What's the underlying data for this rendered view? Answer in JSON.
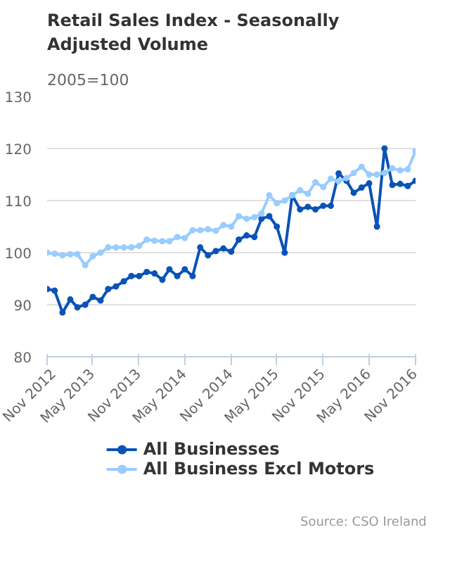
{
  "chart_data": {
    "type": "line",
    "title": "Retail Sales Index - Seasonally Adjusted Volume",
    "subtitle": "2005=100",
    "x": [
      "2012-11",
      "2012-12",
      "2013-01",
      "2013-02",
      "2013-03",
      "2013-04",
      "2013-05",
      "2013-06",
      "2013-07",
      "2013-08",
      "2013-09",
      "2013-10",
      "2013-11",
      "2013-12",
      "2014-01",
      "2014-02",
      "2014-03",
      "2014-04",
      "2014-05",
      "2014-06",
      "2014-07",
      "2014-08",
      "2014-09",
      "2014-10",
      "2014-11",
      "2014-12",
      "2015-01",
      "2015-02",
      "2015-03",
      "2015-04",
      "2015-05",
      "2015-06",
      "2015-07",
      "2015-08",
      "2015-09",
      "2015-10",
      "2015-11",
      "2015-12",
      "2016-01",
      "2016-02",
      "2016-03",
      "2016-04",
      "2016-05",
      "2016-06",
      "2016-07",
      "2016-08",
      "2016-09",
      "2016-10",
      "2016-11"
    ],
    "series": [
      {
        "name": "All Businesses",
        "color": "#0a53b8",
        "values": [
          93,
          92.7,
          88.5,
          91,
          89.5,
          90,
          91.5,
          90.8,
          93,
          93.5,
          94.5,
          95.5,
          95.5,
          96.3,
          96,
          94.8,
          96.8,
          95.5,
          96.8,
          95.5,
          101,
          99.5,
          100.3,
          100.8,
          100.2,
          102.5,
          103.3,
          103,
          106.5,
          107,
          105,
          100,
          111,
          108.3,
          108.8,
          108.3,
          109,
          109,
          115.2,
          113.8,
          111.5,
          112.5,
          113.3,
          105,
          120,
          113,
          113.2,
          112.8,
          113.8
        ]
      },
      {
        "name": "All Business Excl Motors",
        "color": "#99ccff",
        "values": [
          100,
          99.8,
          99.5,
          99.7,
          99.7,
          97.6,
          99.3,
          100,
          101,
          101,
          101,
          101,
          101.3,
          102.5,
          102.3,
          102.2,
          102.2,
          103,
          102.8,
          104.3,
          104.3,
          104.5,
          104.2,
          105.3,
          105,
          107,
          106.5,
          106.8,
          107.5,
          111,
          109.5,
          110,
          111,
          112,
          111.3,
          113.5,
          112.6,
          114.2,
          113.7,
          114.3,
          115.3,
          116.5,
          115,
          115,
          115.3,
          116.2,
          115.8,
          116,
          119.5
        ]
      }
    ],
    "ylim": [
      80,
      130
    ],
    "yticks": [
      80,
      90,
      100,
      110,
      120,
      130
    ],
    "xlim": [
      "2012-11",
      "2016-11"
    ],
    "xticks": [
      {
        "value": "2012-11",
        "label": "Nov 2012"
      },
      {
        "value": "2013-05",
        "label": "May 2013"
      },
      {
        "value": "2013-11",
        "label": "Nov 2013"
      },
      {
        "value": "2014-05",
        "label": "May 2014"
      },
      {
        "value": "2014-11",
        "label": "Nov 2014"
      },
      {
        "value": "2015-05",
        "label": "May 2015"
      },
      {
        "value": "2015-11",
        "label": "Nov 2015"
      },
      {
        "value": "2016-05",
        "label": "May 2016"
      },
      {
        "value": "2016-11",
        "label": "Nov 2016"
      }
    ],
    "grid": "y",
    "legend": "bottom",
    "marker": "circle",
    "line_style": "solid",
    "annotations": [
      "Source: CSO Ireland"
    ]
  }
}
